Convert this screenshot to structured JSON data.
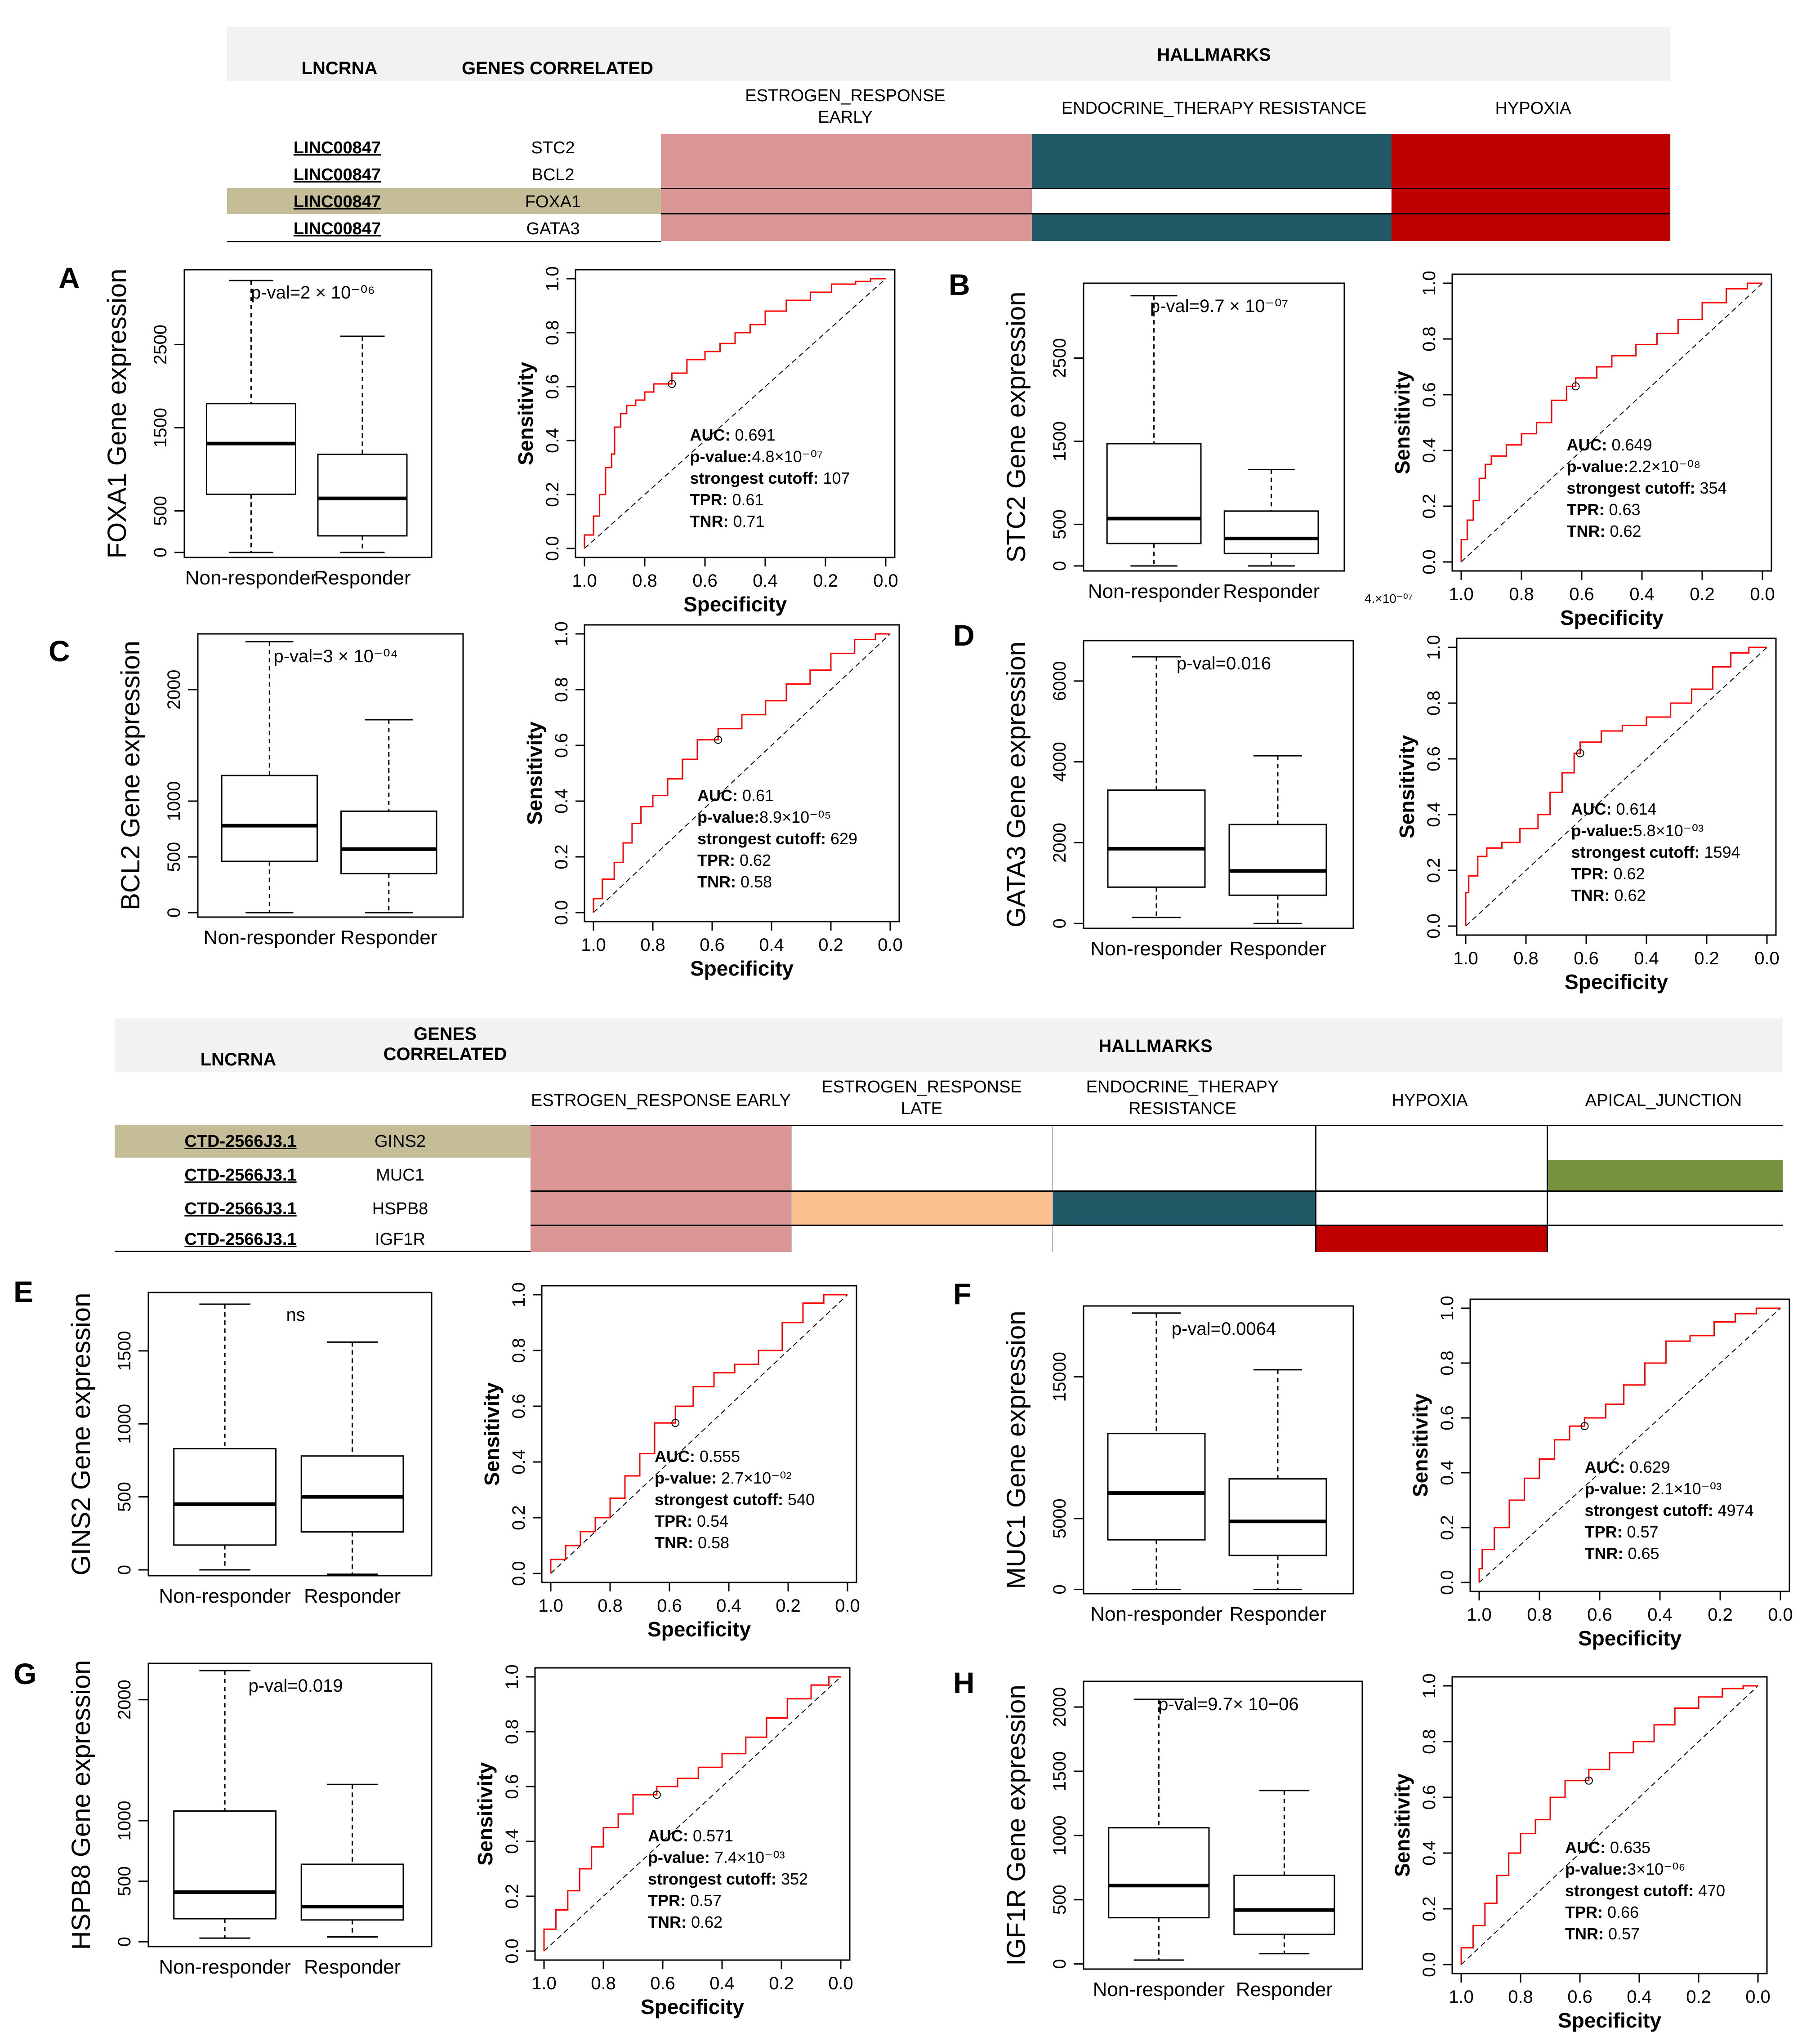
{
  "colors": {
    "estrogen_early": "#d99694",
    "estrogen_late": "#fac090",
    "endocrine": "#215967",
    "hypoxia": "#c00000",
    "apical": "#76923c",
    "highlight_row": "#c4bd97",
    "roc_line": "#ff0000"
  },
  "table1": {
    "col_lncrna": "LNCRNA",
    "col_genes": "GENES CORRELATED",
    "col_hallmarks": "HALLMARKS",
    "hallmarks": [
      "ESTROGEN_RESPONSE EARLY",
      "ENDOCRINE_THERAPY RESISTANCE",
      "HYPOXIA"
    ],
    "rows": [
      {
        "lncrna": "LINC00847",
        "gene": "STC2"
      },
      {
        "lncrna": "LINC00847",
        "gene": "BCL2"
      },
      {
        "lncrna": "LINC00847",
        "gene": "FOXA1"
      },
      {
        "lncrna": "LINC00847",
        "gene": "GATA3"
      }
    ]
  },
  "table2": {
    "col_lncrna": "LNCRNA",
    "col_genes": "GENES CORRELATED",
    "col_hallmarks": "HALLMARKS",
    "hallmarks": [
      "ESTROGEN_RESPONSE EARLY",
      "ESTROGEN_RESPONSE LATE",
      "ENDOCRINE_THERAPY RESISTANCE",
      "HYPOXIA",
      "APICAL_JUNCTION"
    ],
    "rows": [
      {
        "lncrna": "CTD-2566J3.1",
        "gene": "GINS2"
      },
      {
        "lncrna": "CTD-2566J3.1",
        "gene": "MUC1"
      },
      {
        "lncrna": "CTD-2566J3.1",
        "gene": "HSPB8"
      },
      {
        "lncrna": "CTD-2566J3.1",
        "gene": "IGF1R"
      }
    ]
  },
  "stray_label": "4.×10⁻⁰⁷",
  "chart_data": [
    {
      "panel": "A",
      "type": "box",
      "ylabel": "FOXA1 Gene expression",
      "categories": [
        "Non-responder",
        "Responder"
      ],
      "yticks": [
        0,
        500,
        1500,
        2500
      ],
      "ylim": [
        -60,
        3400
      ],
      "pval": "p-val=2 × 10⁻⁰⁶",
      "boxes": [
        {
          "min": 0,
          "q1": 700,
          "median": 1310,
          "q3": 1790,
          "max": 3270
        },
        {
          "min": 0,
          "q1": 200,
          "median": 650,
          "q3": 1180,
          "max": 2600
        }
      ]
    },
    {
      "panel": "A",
      "type": "roc",
      "xlabel": "Specificity",
      "ylabel": "Sensitivity",
      "stats": [
        "AUC:  0.691",
        "p-value:4.8×10⁻⁰⁷",
        "strongest cutoff: 107",
        "TPR: 0.61",
        "TNR: 0.71"
      ],
      "cut": [
        0.71,
        0.61
      ],
      "curve": [
        [
          1,
          0
        ],
        [
          0.97,
          0.05
        ],
        [
          0.95,
          0.12
        ],
        [
          0.93,
          0.2
        ],
        [
          0.91,
          0.3
        ],
        [
          0.9,
          0.35
        ],
        [
          0.88,
          0.45
        ],
        [
          0.86,
          0.5
        ],
        [
          0.83,
          0.53
        ],
        [
          0.8,
          0.55
        ],
        [
          0.77,
          0.58
        ],
        [
          0.71,
          0.61
        ],
        [
          0.66,
          0.65
        ],
        [
          0.6,
          0.7
        ],
        [
          0.55,
          0.73
        ],
        [
          0.5,
          0.76
        ],
        [
          0.45,
          0.8
        ],
        [
          0.4,
          0.83
        ],
        [
          0.33,
          0.88
        ],
        [
          0.25,
          0.92
        ],
        [
          0.18,
          0.95
        ],
        [
          0.1,
          0.98
        ],
        [
          0.05,
          0.99
        ],
        [
          0,
          1
        ]
      ]
    },
    {
      "panel": "B",
      "type": "box",
      "ylabel": "STC2 Gene expression",
      "categories": [
        "Non-responder",
        "Responder"
      ],
      "yticks": [
        0,
        500,
        1500,
        2500
      ],
      "ylim": [
        -60,
        3400
      ],
      "pval": "p-val=9.7 × 10⁻⁰⁷",
      "boxes": [
        {
          "min": 0,
          "q1": 270,
          "median": 570,
          "q3": 1470,
          "max": 3250
        },
        {
          "min": 0,
          "q1": 150,
          "median": 330,
          "q3": 660,
          "max": 1160
        }
      ]
    },
    {
      "panel": "B",
      "type": "roc",
      "xlabel": "Specificity",
      "ylabel": "Sensitivity",
      "stats": [
        "AUC:  0.649",
        "p-value:2.2×10⁻⁰⁸",
        "strongest cutoff: 354",
        "TPR: 0.63",
        "TNR: 0.62"
      ],
      "cut": [
        0.62,
        0.63
      ],
      "curve": [
        [
          1,
          0
        ],
        [
          0.98,
          0.08
        ],
        [
          0.96,
          0.15
        ],
        [
          0.94,
          0.22
        ],
        [
          0.92,
          0.3
        ],
        [
          0.9,
          0.35
        ],
        [
          0.85,
          0.38
        ],
        [
          0.8,
          0.42
        ],
        [
          0.75,
          0.46
        ],
        [
          0.7,
          0.5
        ],
        [
          0.65,
          0.58
        ],
        [
          0.62,
          0.63
        ],
        [
          0.55,
          0.66
        ],
        [
          0.5,
          0.7
        ],
        [
          0.42,
          0.74
        ],
        [
          0.35,
          0.78
        ],
        [
          0.28,
          0.82
        ],
        [
          0.2,
          0.87
        ],
        [
          0.12,
          0.93
        ],
        [
          0.05,
          0.98
        ],
        [
          0,
          1
        ]
      ]
    },
    {
      "panel": "C",
      "type": "box",
      "ylabel": "BCL2 Gene expression",
      "categories": [
        "Non-responder",
        "Responder"
      ],
      "yticks": [
        0,
        500,
        1000,
        2000
      ],
      "ylim": [
        -40,
        2500
      ],
      "pval": "p-val=3 × 10⁻⁰⁴",
      "boxes": [
        {
          "min": 0,
          "q1": 460,
          "median": 780,
          "q3": 1230,
          "max": 2430
        },
        {
          "min": 0,
          "q1": 350,
          "median": 570,
          "q3": 910,
          "max": 1730
        }
      ]
    },
    {
      "panel": "C",
      "type": "roc",
      "xlabel": "Specificity",
      "ylabel": "Sensitivity",
      "stats": [
        "AUC:  0.61",
        "p-value:8.9×10⁻⁰⁵",
        "strongest cutoff: 629",
        "TPR: 0.62",
        "TNR: 0.58"
      ],
      "cut": [
        0.58,
        0.62
      ],
      "curve": [
        [
          1,
          0
        ],
        [
          0.97,
          0.05
        ],
        [
          0.93,
          0.12
        ],
        [
          0.9,
          0.18
        ],
        [
          0.87,
          0.25
        ],
        [
          0.84,
          0.32
        ],
        [
          0.8,
          0.38
        ],
        [
          0.75,
          0.42
        ],
        [
          0.7,
          0.48
        ],
        [
          0.65,
          0.55
        ],
        [
          0.58,
          0.62
        ],
        [
          0.5,
          0.66
        ],
        [
          0.42,
          0.71
        ],
        [
          0.35,
          0.76
        ],
        [
          0.27,
          0.82
        ],
        [
          0.2,
          0.87
        ],
        [
          0.12,
          0.93
        ],
        [
          0.05,
          0.98
        ],
        [
          0,
          1
        ]
      ]
    },
    {
      "panel": "D",
      "type": "box",
      "ylabel": "GATA3 Gene expression",
      "categories": [
        "Non-responder",
        "Responder"
      ],
      "yticks": [
        0,
        2000,
        4000,
        6000
      ],
      "ylim": [
        -120,
        7000
      ],
      "pval": "p-val=0.016",
      "boxes": [
        {
          "min": 150,
          "q1": 900,
          "median": 1850,
          "q3": 3300,
          "max": 6600
        },
        {
          "min": 0,
          "q1": 700,
          "median": 1300,
          "q3": 2450,
          "max": 4150
        }
      ]
    },
    {
      "panel": "D",
      "type": "roc",
      "xlabel": "Specificity",
      "ylabel": "Sensitivity",
      "stats": [
        "AUC:  0.614",
        "p-value:5.8×10⁻⁰³",
        "strongest cutoff: 1594",
        "TPR: 0.62",
        "TNR: 0.62"
      ],
      "cut": [
        0.62,
        0.62
      ],
      "curve": [
        [
          1,
          0
        ],
        [
          0.99,
          0.12
        ],
        [
          0.96,
          0.18
        ],
        [
          0.93,
          0.25
        ],
        [
          0.88,
          0.28
        ],
        [
          0.82,
          0.3
        ],
        [
          0.76,
          0.35
        ],
        [
          0.72,
          0.4
        ],
        [
          0.68,
          0.48
        ],
        [
          0.64,
          0.55
        ],
        [
          0.62,
          0.62
        ],
        [
          0.55,
          0.66
        ],
        [
          0.48,
          0.7
        ],
        [
          0.4,
          0.72
        ],
        [
          0.32,
          0.75
        ],
        [
          0.25,
          0.8
        ],
        [
          0.18,
          0.85
        ],
        [
          0.12,
          0.93
        ],
        [
          0.06,
          0.98
        ],
        [
          0,
          1
        ]
      ]
    },
    {
      "panel": "E",
      "type": "box",
      "ylabel": "GINS2 Gene expression",
      "categories": [
        "Non-responder",
        "Responder"
      ],
      "yticks": [
        0,
        500,
        1000,
        1500
      ],
      "ylim": [
        -40,
        1900
      ],
      "pval": "ns",
      "boxes": [
        {
          "min": 0,
          "q1": 170,
          "median": 450,
          "q3": 830,
          "max": 1820
        },
        {
          "min": -30,
          "q1": 260,
          "median": 500,
          "q3": 780,
          "max": 1560
        }
      ]
    },
    {
      "panel": "E",
      "type": "roc",
      "xlabel": "Specificity",
      "ylabel": "Sensitivity",
      "stats": [
        "AUC:  0.555",
        "p-value: 2.7×10⁻⁰²",
        "strongest cutoff: 540",
        "TPR: 0.54",
        "TNR: 0.58"
      ],
      "cut": [
        0.58,
        0.54
      ],
      "curve": [
        [
          1,
          0
        ],
        [
          0.95,
          0.05
        ],
        [
          0.9,
          0.1
        ],
        [
          0.85,
          0.15
        ],
        [
          0.8,
          0.2
        ],
        [
          0.75,
          0.27
        ],
        [
          0.7,
          0.35
        ],
        [
          0.65,
          0.43
        ],
        [
          0.58,
          0.54
        ],
        [
          0.52,
          0.6
        ],
        [
          0.45,
          0.67
        ],
        [
          0.38,
          0.72
        ],
        [
          0.3,
          0.75
        ],
        [
          0.22,
          0.8
        ],
        [
          0.15,
          0.9
        ],
        [
          0.08,
          0.97
        ],
        [
          0,
          1
        ]
      ]
    },
    {
      "panel": "F",
      "type": "box",
      "ylabel": "MUC1 Gene expression",
      "categories": [
        "Non-responder",
        "Responder"
      ],
      "yticks": [
        0,
        5000,
        15000
      ],
      "ylim": [
        -300,
        20000
      ],
      "pval": "p-val=0.0064",
      "boxes": [
        {
          "min": 0,
          "q1": 3500,
          "median": 6800,
          "q3": 11000,
          "max": 19500
        },
        {
          "min": 0,
          "q1": 2400,
          "median": 4800,
          "q3": 7800,
          "max": 15500
        }
      ]
    },
    {
      "panel": "F",
      "type": "roc",
      "xlabel": "Specificity",
      "ylabel": "Sensitivity",
      "stats": [
        "AUC:  0.629",
        "p-value: 2.1×10⁻⁰³",
        "strongest cutoff: 4974",
        "TPR: 0.57",
        "TNR: 0.65"
      ],
      "cut": [
        0.65,
        0.57
      ],
      "curve": [
        [
          1,
          0
        ],
        [
          0.99,
          0.05
        ],
        [
          0.95,
          0.12
        ],
        [
          0.9,
          0.2
        ],
        [
          0.85,
          0.3
        ],
        [
          0.8,
          0.38
        ],
        [
          0.75,
          0.45
        ],
        [
          0.7,
          0.52
        ],
        [
          0.65,
          0.57
        ],
        [
          0.58,
          0.6
        ],
        [
          0.52,
          0.65
        ],
        [
          0.45,
          0.72
        ],
        [
          0.38,
          0.8
        ],
        [
          0.3,
          0.88
        ],
        [
          0.22,
          0.9
        ],
        [
          0.15,
          0.95
        ],
        [
          0.08,
          0.98
        ],
        [
          0,
          1
        ]
      ]
    },
    {
      "panel": "G",
      "type": "box",
      "ylabel": "HSPB8 Gene expression",
      "categories": [
        "Non-responder",
        "Responder"
      ],
      "yticks": [
        0,
        500,
        1000,
        2000
      ],
      "ylim": [
        -40,
        2300
      ],
      "pval": "p-val=0.019",
      "boxes": [
        {
          "min": 30,
          "q1": 190,
          "median": 410,
          "q3": 1080,
          "max": 2240
        },
        {
          "min": 40,
          "q1": 180,
          "median": 290,
          "q3": 640,
          "max": 1300
        }
      ]
    },
    {
      "panel": "G",
      "type": "roc",
      "xlabel": "Specificity",
      "ylabel": "Sensitivity",
      "stats": [
        "AUC:  0.571",
        "p-value: 7.4×10⁻⁰³",
        "strongest cutoff: 352",
        "TPR: 0.57",
        "TNR: 0.62"
      ],
      "cut": [
        0.62,
        0.57
      ],
      "curve": [
        [
          1,
          0
        ],
        [
          0.96,
          0.08
        ],
        [
          0.92,
          0.15
        ],
        [
          0.88,
          0.22
        ],
        [
          0.84,
          0.3
        ],
        [
          0.8,
          0.38
        ],
        [
          0.75,
          0.45
        ],
        [
          0.7,
          0.5
        ],
        [
          0.62,
          0.57
        ],
        [
          0.55,
          0.6
        ],
        [
          0.48,
          0.63
        ],
        [
          0.4,
          0.67
        ],
        [
          0.32,
          0.72
        ],
        [
          0.25,
          0.78
        ],
        [
          0.18,
          0.85
        ],
        [
          0.1,
          0.92
        ],
        [
          0.04,
          0.97
        ],
        [
          0,
          1
        ]
      ]
    },
    {
      "panel": "H",
      "type": "box",
      "ylabel": "IGF1R Gene expression",
      "categories": [
        "Non-responder",
        "Responder"
      ],
      "yticks": [
        0,
        500,
        1000,
        1500,
        2000
      ],
      "ylim": [
        -40,
        2200
      ],
      "pval": "p-val=9.7× 10−06",
      "boxes": [
        {
          "min": 30,
          "q1": 360,
          "median": 610,
          "q3": 1060,
          "max": 2060
        },
        {
          "min": 80,
          "q1": 230,
          "median": 420,
          "q3": 690,
          "max": 1350
        }
      ]
    },
    {
      "panel": "H",
      "type": "roc",
      "xlabel": "Specificity",
      "ylabel": "Sensitivity",
      "stats": [
        "AUC:  0.635",
        "p-value:3×10⁻⁰⁶",
        "strongest cutoff: 470",
        "TPR: 0.66",
        "TNR: 0.57"
      ],
      "cut": [
        0.57,
        0.66
      ],
      "curve": [
        [
          1,
          0
        ],
        [
          0.96,
          0.06
        ],
        [
          0.92,
          0.14
        ],
        [
          0.88,
          0.22
        ],
        [
          0.84,
          0.32
        ],
        [
          0.8,
          0.4
        ],
        [
          0.75,
          0.47
        ],
        [
          0.7,
          0.52
        ],
        [
          0.65,
          0.6
        ],
        [
          0.57,
          0.66
        ],
        [
          0.5,
          0.7
        ],
        [
          0.42,
          0.76
        ],
        [
          0.35,
          0.8
        ],
        [
          0.28,
          0.86
        ],
        [
          0.2,
          0.92
        ],
        [
          0.12,
          0.96
        ],
        [
          0.05,
          0.99
        ],
        [
          0,
          1
        ]
      ]
    }
  ]
}
